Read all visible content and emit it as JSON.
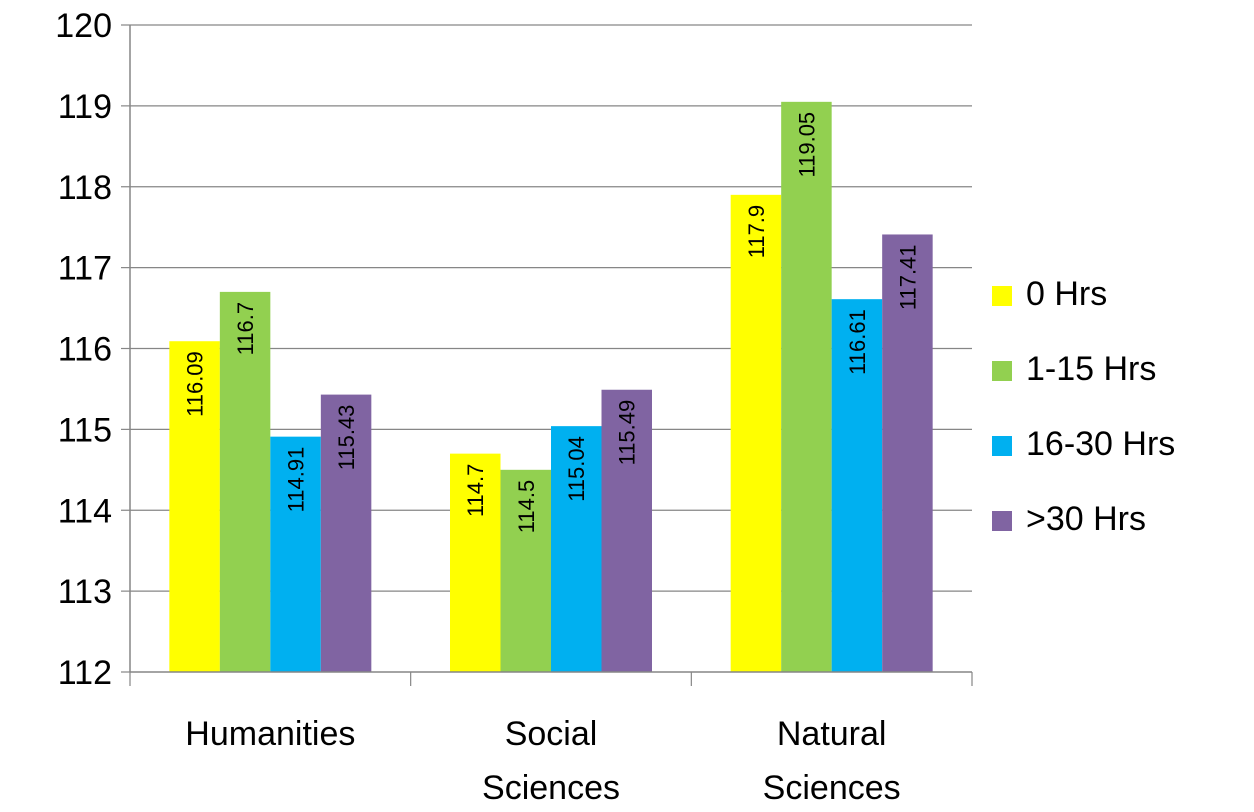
{
  "chart_data": {
    "type": "bar",
    "categories": [
      "Humanities",
      "Social Sciences",
      "Natural Sciences"
    ],
    "category_lines": [
      [
        "Humanities"
      ],
      [
        "Social",
        "Sciences"
      ],
      [
        "Natural",
        "Sciences"
      ]
    ],
    "series": [
      {
        "name": "0 Hrs",
        "color": "#ffff00",
        "values": [
          116.09,
          114.7,
          117.9
        ]
      },
      {
        "name": "1-15 Hrs",
        "color": "#92d050",
        "values": [
          116.7,
          114.5,
          119.05
        ]
      },
      {
        "name": "16-30 Hrs",
        "color": "#00b0f0",
        "values": [
          114.91,
          115.04,
          116.61
        ]
      },
      {
        "name": ">30 Hrs",
        "color": "#8064a2",
        "values": [
          115.43,
          115.49,
          117.41
        ]
      }
    ],
    "title": "",
    "xlabel": "",
    "ylabel": "",
    "ylim": [
      112,
      120
    ],
    "yticks": [
      112,
      113,
      114,
      115,
      116,
      117,
      118,
      119,
      120
    ],
    "grid": true,
    "legend": "right",
    "data_labels": true
  }
}
